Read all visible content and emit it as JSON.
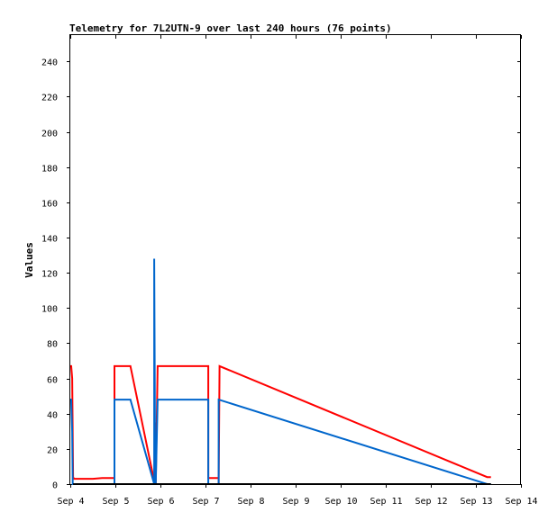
{
  "chart_data": {
    "type": "line",
    "title": "Telemetry for 7L2UTN-9 over last 240 hours (76 points)",
    "xlabel": "",
    "ylabel": "Values",
    "x_ticks": [
      "Sep 4",
      "Sep 5",
      "Sep 6",
      "Sep 7",
      "Sep 8",
      "Sep 9",
      "Sep 10",
      "Sep 11",
      "Sep 12",
      "Sep 13",
      "Sep 14"
    ],
    "xlim": [
      0,
      240
    ],
    "x_unit": "hours",
    "ylim": [
      0,
      255
    ],
    "y_ticks": [
      0,
      20,
      40,
      60,
      80,
      100,
      120,
      140,
      160,
      180,
      200,
      220,
      240
    ],
    "grid": false,
    "legend": "none",
    "series": [
      {
        "color": "#ff0000",
        "points": [
          [
            0,
            67
          ],
          [
            0.5,
            67
          ],
          [
            1.0,
            60
          ],
          [
            1.5,
            4
          ],
          [
            2,
            3
          ],
          [
            4,
            3
          ],
          [
            8,
            3
          ],
          [
            12,
            3
          ],
          [
            17,
            3.5
          ],
          [
            22,
            3.5
          ],
          [
            23.5,
            3.5
          ],
          [
            23.5,
            67
          ],
          [
            32,
            67
          ],
          [
            45,
            0
          ],
          [
            45.2,
            0
          ],
          [
            45.2,
            35
          ],
          [
            45.5,
            0
          ],
          [
            46.5,
            67
          ],
          [
            73.5,
            67
          ],
          [
            73.5,
            3.5
          ],
          [
            79,
            3.5
          ],
          [
            79,
            0
          ],
          [
            79.5,
            67
          ],
          [
            222,
            4
          ],
          [
            224,
            4
          ]
        ]
      },
      {
        "color": "#0066cc",
        "points": [
          [
            0,
            48
          ],
          [
            0.5,
            48
          ],
          [
            1.0,
            30
          ],
          [
            1.3,
            0
          ],
          [
            23.5,
            0
          ],
          [
            23.5,
            48
          ],
          [
            32,
            48
          ],
          [
            44.7,
            0
          ],
          [
            44.7,
            128
          ],
          [
            45.2,
            0
          ],
          [
            45.5,
            0
          ],
          [
            46.5,
            48
          ],
          [
            73.5,
            48
          ],
          [
            73.5,
            0
          ],
          [
            79,
            0
          ],
          [
            79,
            48
          ],
          [
            222,
            0
          ],
          [
            224,
            0
          ]
        ]
      },
      {
        "color": "#000000",
        "points": [
          [
            1.5,
            0
          ],
          [
            224,
            0
          ]
        ]
      }
    ]
  }
}
